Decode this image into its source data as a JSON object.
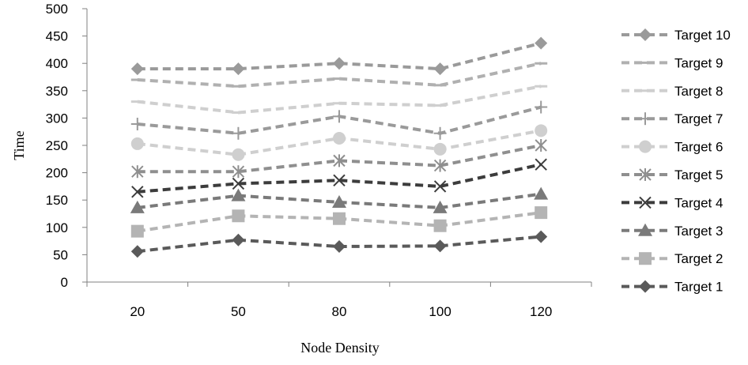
{
  "chart_data": {
    "type": "line",
    "title": "",
    "xlabel": "Node Density",
    "ylabel": "Time",
    "categories": [
      "20",
      "50",
      "80",
      "100",
      "120"
    ],
    "ylim": [
      0,
      500
    ],
    "yticks": [
      "0",
      "50",
      "100",
      "150",
      "200",
      "250",
      "300",
      "350",
      "400",
      "450",
      "500"
    ],
    "grid": false,
    "legend_position": "right",
    "series": [
      {
        "name": "Target 10",
        "values": [
          390,
          390,
          400,
          390,
          437
        ],
        "color": "#9a9a9a",
        "marker": "diamond"
      },
      {
        "name": "Target 9",
        "values": [
          370,
          358,
          372,
          360,
          400
        ],
        "color": "#b0b0b0",
        "marker": "dash"
      },
      {
        "name": "Target 8",
        "values": [
          330,
          310,
          327,
          323,
          358
        ],
        "color": "#cfcfcf",
        "marker": "dash"
      },
      {
        "name": "Target 7",
        "values": [
          289,
          272,
          303,
          272,
          320
        ],
        "color": "#9a9a9a",
        "marker": "plus"
      },
      {
        "name": "Target 6",
        "values": [
          253,
          233,
          263,
          243,
          277
        ],
        "color": "#cfcfcf",
        "marker": "circle"
      },
      {
        "name": "Target 5",
        "values": [
          202,
          202,
          222,
          213,
          250
        ],
        "color": "#8f8f8f",
        "marker": "star"
      },
      {
        "name": "Target 4",
        "values": [
          165,
          180,
          186,
          175,
          215
        ],
        "color": "#3c3c3c",
        "marker": "x"
      },
      {
        "name": "Target 3",
        "values": [
          136,
          158,
          146,
          136,
          161
        ],
        "color": "#7a7a7a",
        "marker": "triangle"
      },
      {
        "name": "Target 2",
        "values": [
          93,
          121,
          116,
          103,
          127
        ],
        "color": "#b4b4b4",
        "marker": "square"
      },
      {
        "name": "Target 1",
        "values": [
          56,
          77,
          65,
          66,
          83
        ],
        "color": "#5a5a5a",
        "marker": "diamond"
      }
    ]
  }
}
